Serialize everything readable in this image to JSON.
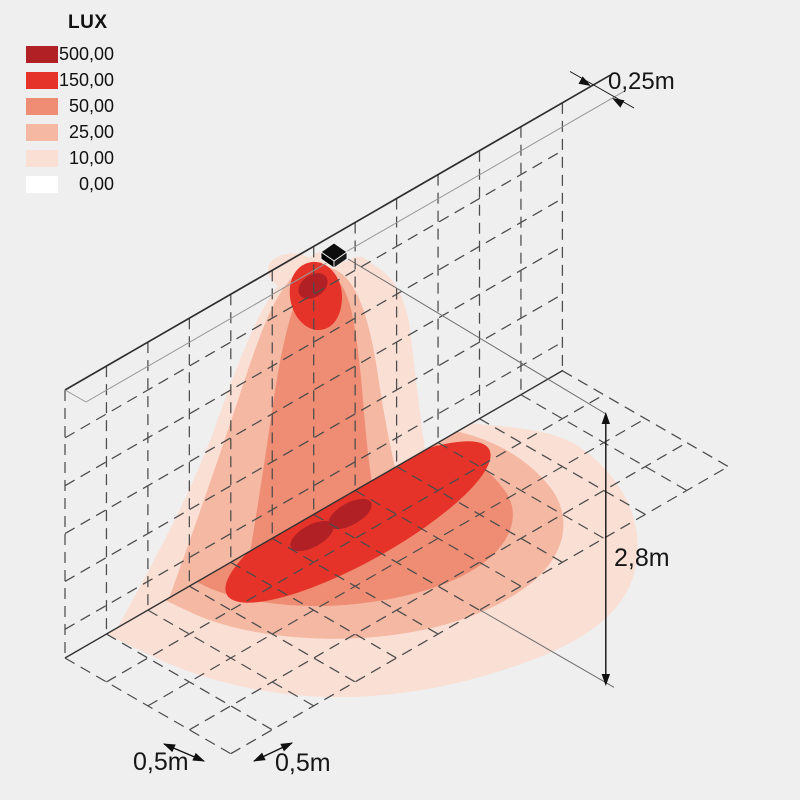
{
  "legend": {
    "title": "LUX",
    "items": [
      {
        "label": "500,00",
        "color": "#b02025"
      },
      {
        "label": "150,00",
        "color": "#e63329"
      },
      {
        "label": "50,00",
        "color": "#ee8d73"
      },
      {
        "label": "25,00",
        "color": "#f5b8a3"
      },
      {
        "label": "10,00",
        "color": "#fadfd4"
      },
      {
        "label": "0,00",
        "color": "#ffffff"
      }
    ]
  },
  "dimensions": {
    "wall_thickness": "0,25m",
    "mounting_height": "2,8m",
    "cell_depth": "0,5m",
    "cell_width": "0,5m"
  },
  "colors": {
    "background": "#efefef",
    "grid_dash": "#4c4c4c",
    "solid_edge": "#333333",
    "top_edge_thick": "#2e2e2e",
    "top_edge_thin": "#979797",
    "reference_line": "#6b6b6b",
    "dimension_ink": "#111111",
    "luminaire_black": "#0d0d0d"
  }
}
